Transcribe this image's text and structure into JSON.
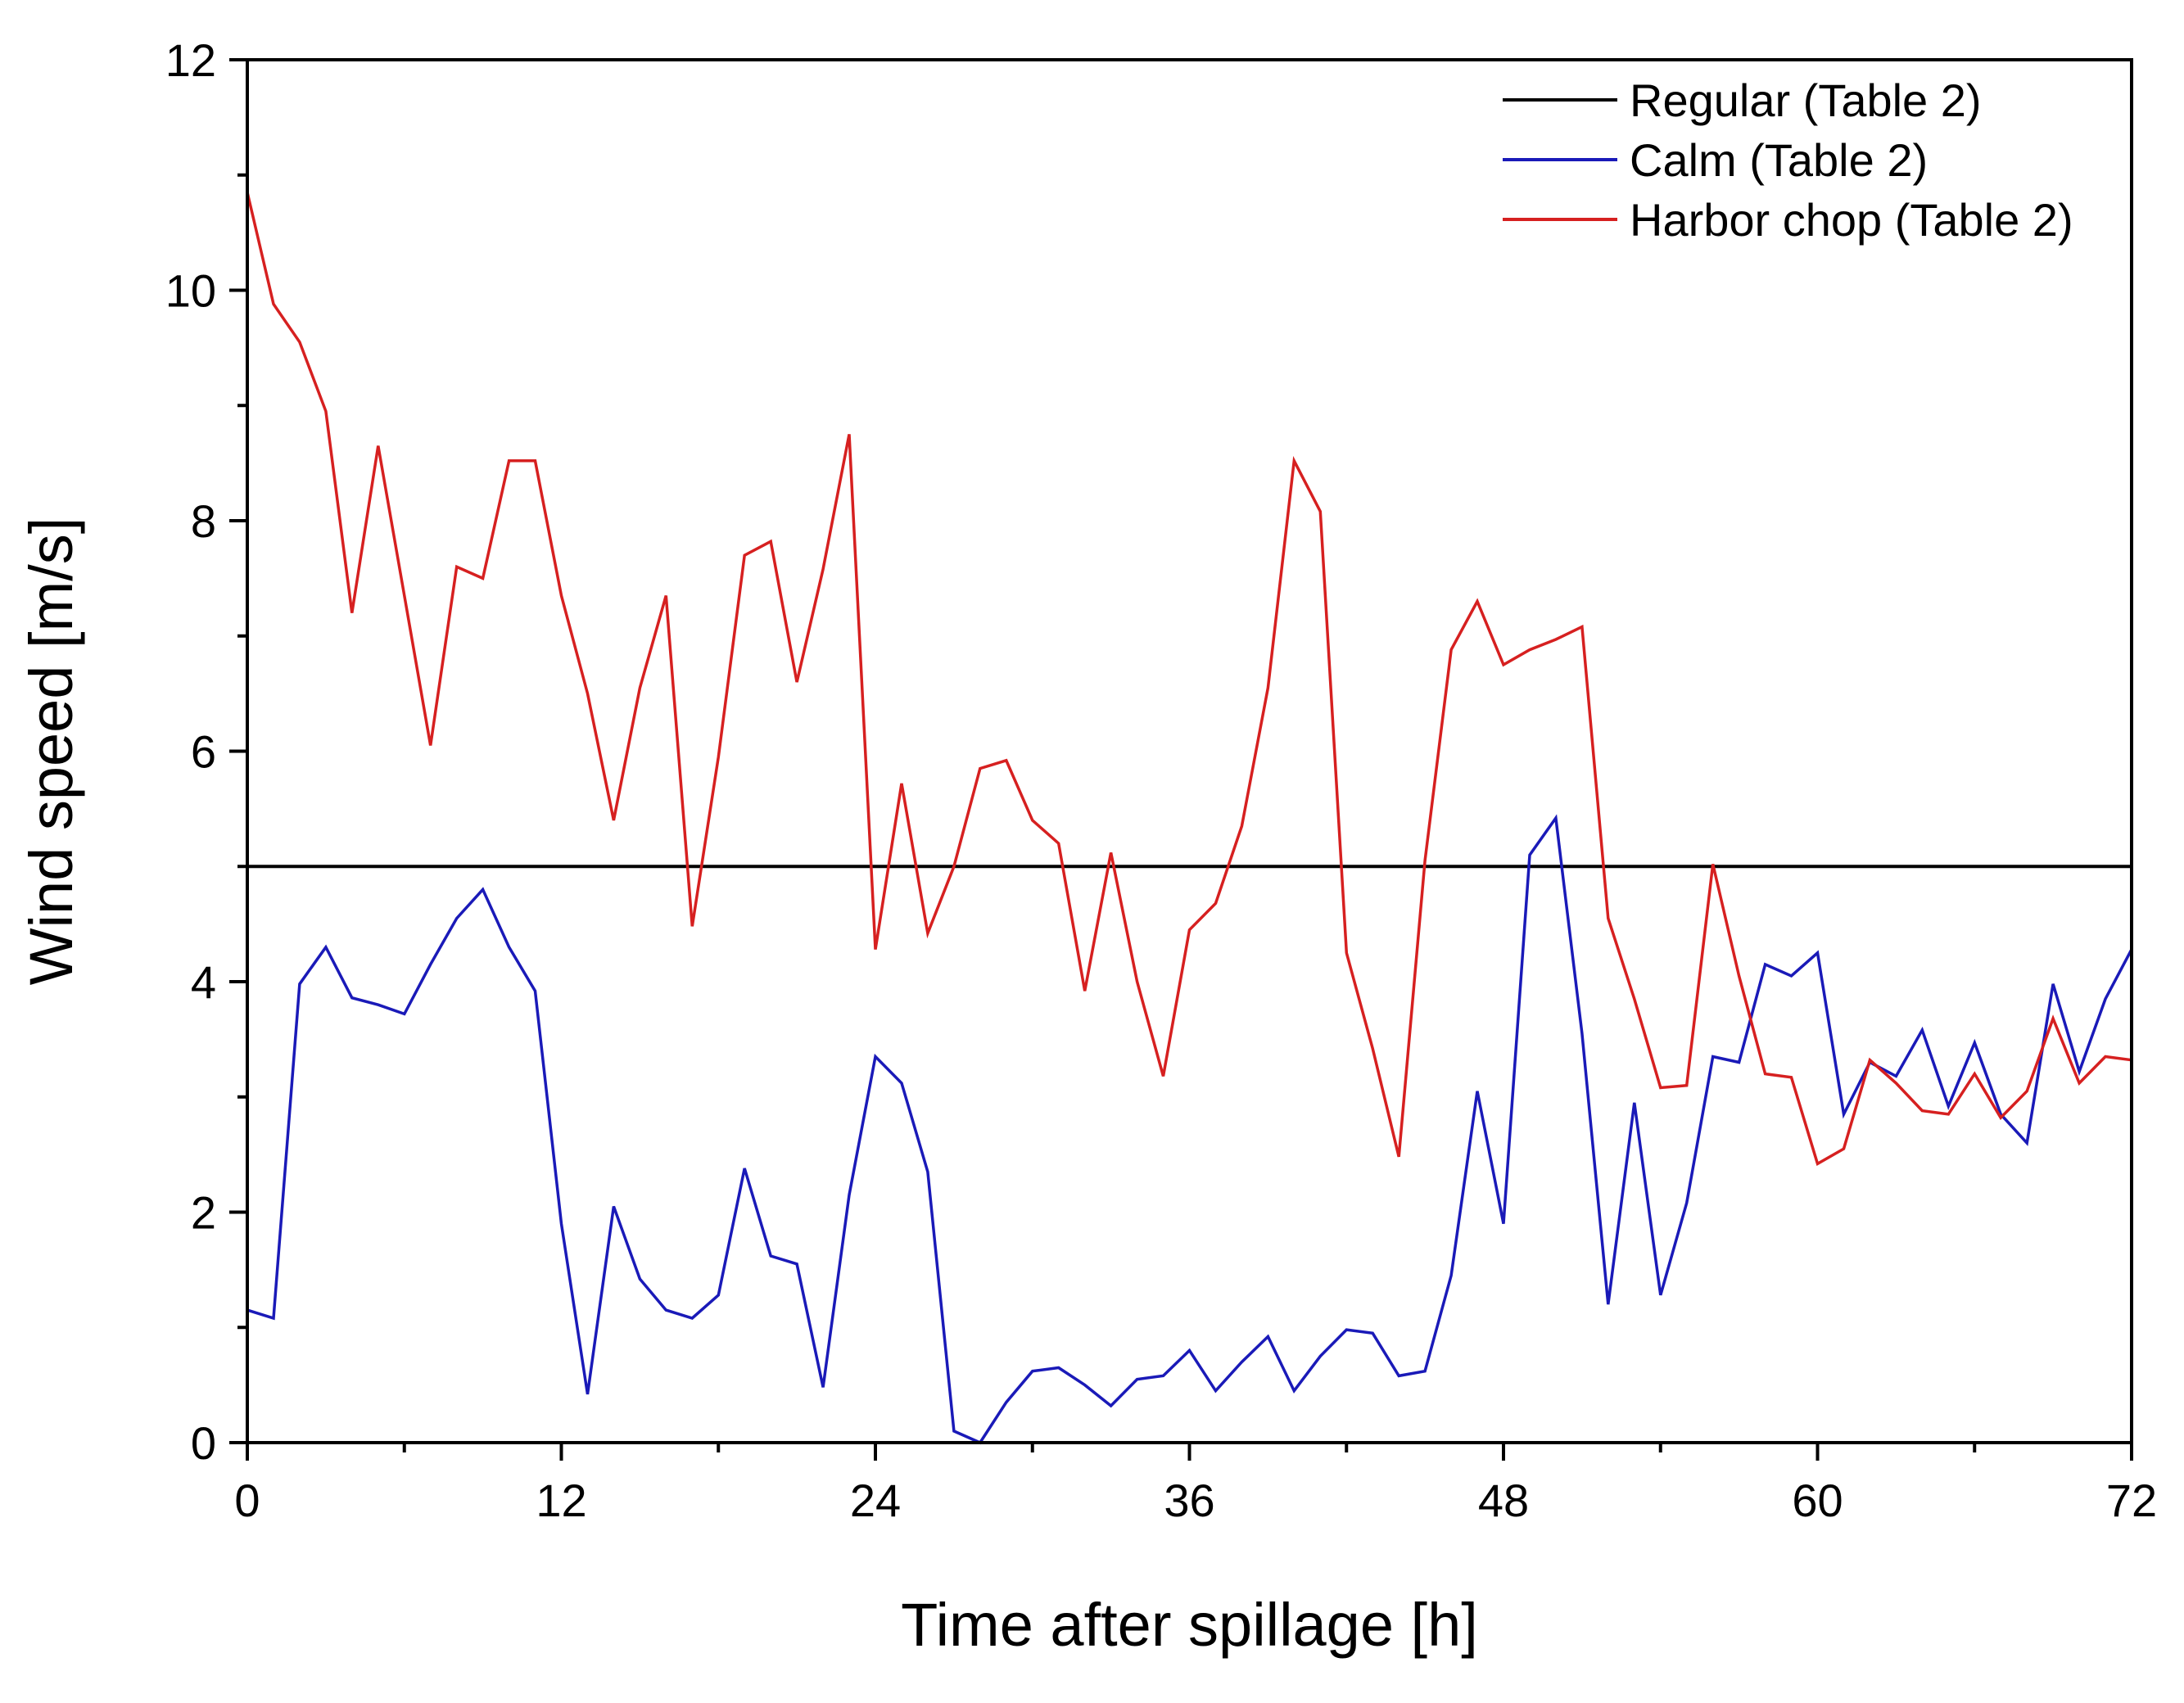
{
  "chart_data": {
    "type": "line",
    "title": "",
    "xlabel": "Time after spillage [h]",
    "ylabel": "Wind speed [m/s]",
    "xlim": [
      0,
      72
    ],
    "ylim": [
      0,
      12
    ],
    "xticks": [
      0,
      12,
      24,
      36,
      48,
      60,
      72
    ],
    "yticks": [
      0,
      2,
      4,
      6,
      8,
      10,
      12
    ],
    "x_minor_step": 6,
    "y_minor_step": 1,
    "grid": false,
    "legend_position": "top-right",
    "series": [
      {
        "name": "Regular (Table 2)",
        "color": "#000000",
        "x": [
          0,
          72
        ],
        "values": [
          5.0,
          5.0
        ]
      },
      {
        "name": "Calm (Table 2)",
        "color": "#1a1ab8",
        "x": [
          0,
          1,
          2,
          3,
          4,
          5,
          6,
          7,
          8,
          9,
          10,
          11,
          12,
          13,
          14,
          15,
          16,
          17,
          18,
          19,
          20,
          21,
          22,
          23,
          24,
          25,
          26,
          27,
          28,
          29,
          30,
          31,
          32,
          33,
          34,
          35,
          36,
          37,
          38,
          39,
          40,
          41,
          42,
          43,
          44,
          45,
          46,
          47,
          48,
          49,
          50,
          51,
          52,
          53,
          54,
          55,
          56,
          57,
          58,
          59,
          60,
          61,
          62,
          63,
          64,
          65,
          66,
          67,
          68,
          69,
          70,
          71,
          72
        ],
        "values": [
          1.15,
          1.08,
          3.98,
          4.3,
          3.86,
          3.8,
          3.72,
          4.15,
          4.55,
          4.8,
          4.3,
          3.92,
          1.9,
          0.42,
          2.05,
          1.42,
          1.15,
          1.08,
          1.28,
          2.38,
          1.62,
          1.55,
          0.48,
          2.15,
          3.35,
          3.12,
          2.35,
          0.1,
          0.0,
          0.35,
          0.62,
          0.65,
          0.5,
          0.32,
          0.55,
          0.58,
          0.8,
          0.45,
          0.7,
          0.92,
          0.45,
          0.75,
          0.98,
          0.95,
          0.58,
          0.62,
          1.45,
          3.05,
          1.9,
          5.1,
          5.42,
          3.55,
          1.2,
          2.95,
          1.28,
          2.08,
          3.35,
          3.3,
          4.15,
          4.05,
          4.25,
          2.85,
          3.3,
          3.18,
          3.58,
          2.92,
          3.47,
          2.85,
          2.6,
          3.98,
          3.22,
          3.85,
          4.28
        ]
      },
      {
        "name": "Harbor chop (Table 2)",
        "color": "#d62020",
        "x": [
          0,
          1,
          2,
          3,
          4,
          5,
          6,
          7,
          8,
          9,
          10,
          11,
          12,
          13,
          14,
          15,
          16,
          17,
          18,
          19,
          20,
          21,
          22,
          23,
          24,
          25,
          26,
          27,
          28,
          29,
          30,
          31,
          32,
          33,
          34,
          35,
          36,
          37,
          38,
          39,
          40,
          41,
          42,
          43,
          44,
          45,
          46,
          47,
          48,
          49,
          50,
          51,
          52,
          53,
          54,
          55,
          56,
          57,
          58,
          59,
          60,
          61,
          62,
          63,
          64,
          65,
          66,
          67,
          68,
          69,
          70,
          71,
          72
        ],
        "values": [
          10.85,
          9.88,
          9.55,
          8.95,
          7.2,
          8.65,
          7.35,
          6.05,
          7.6,
          7.5,
          8.52,
          8.52,
          7.35,
          6.5,
          5.4,
          6.55,
          7.35,
          4.48,
          5.95,
          7.7,
          7.82,
          6.6,
          7.58,
          8.75,
          4.28,
          5.72,
          4.42,
          5.0,
          5.85,
          5.92,
          5.4,
          5.2,
          3.92,
          5.12,
          4.0,
          3.18,
          4.45,
          4.68,
          5.35,
          6.55,
          8.52,
          8.08,
          4.25,
          3.42,
          2.48,
          5.05,
          6.88,
          7.3,
          6.75,
          6.88,
          6.97,
          7.08,
          4.55,
          3.85,
          3.08,
          3.1,
          5.02,
          4.05,
          3.2,
          3.17,
          2.42,
          2.55,
          3.32,
          3.12,
          2.88,
          2.85,
          3.2,
          2.82,
          3.05,
          3.68,
          3.12,
          3.35,
          3.32
        ]
      }
    ]
  }
}
